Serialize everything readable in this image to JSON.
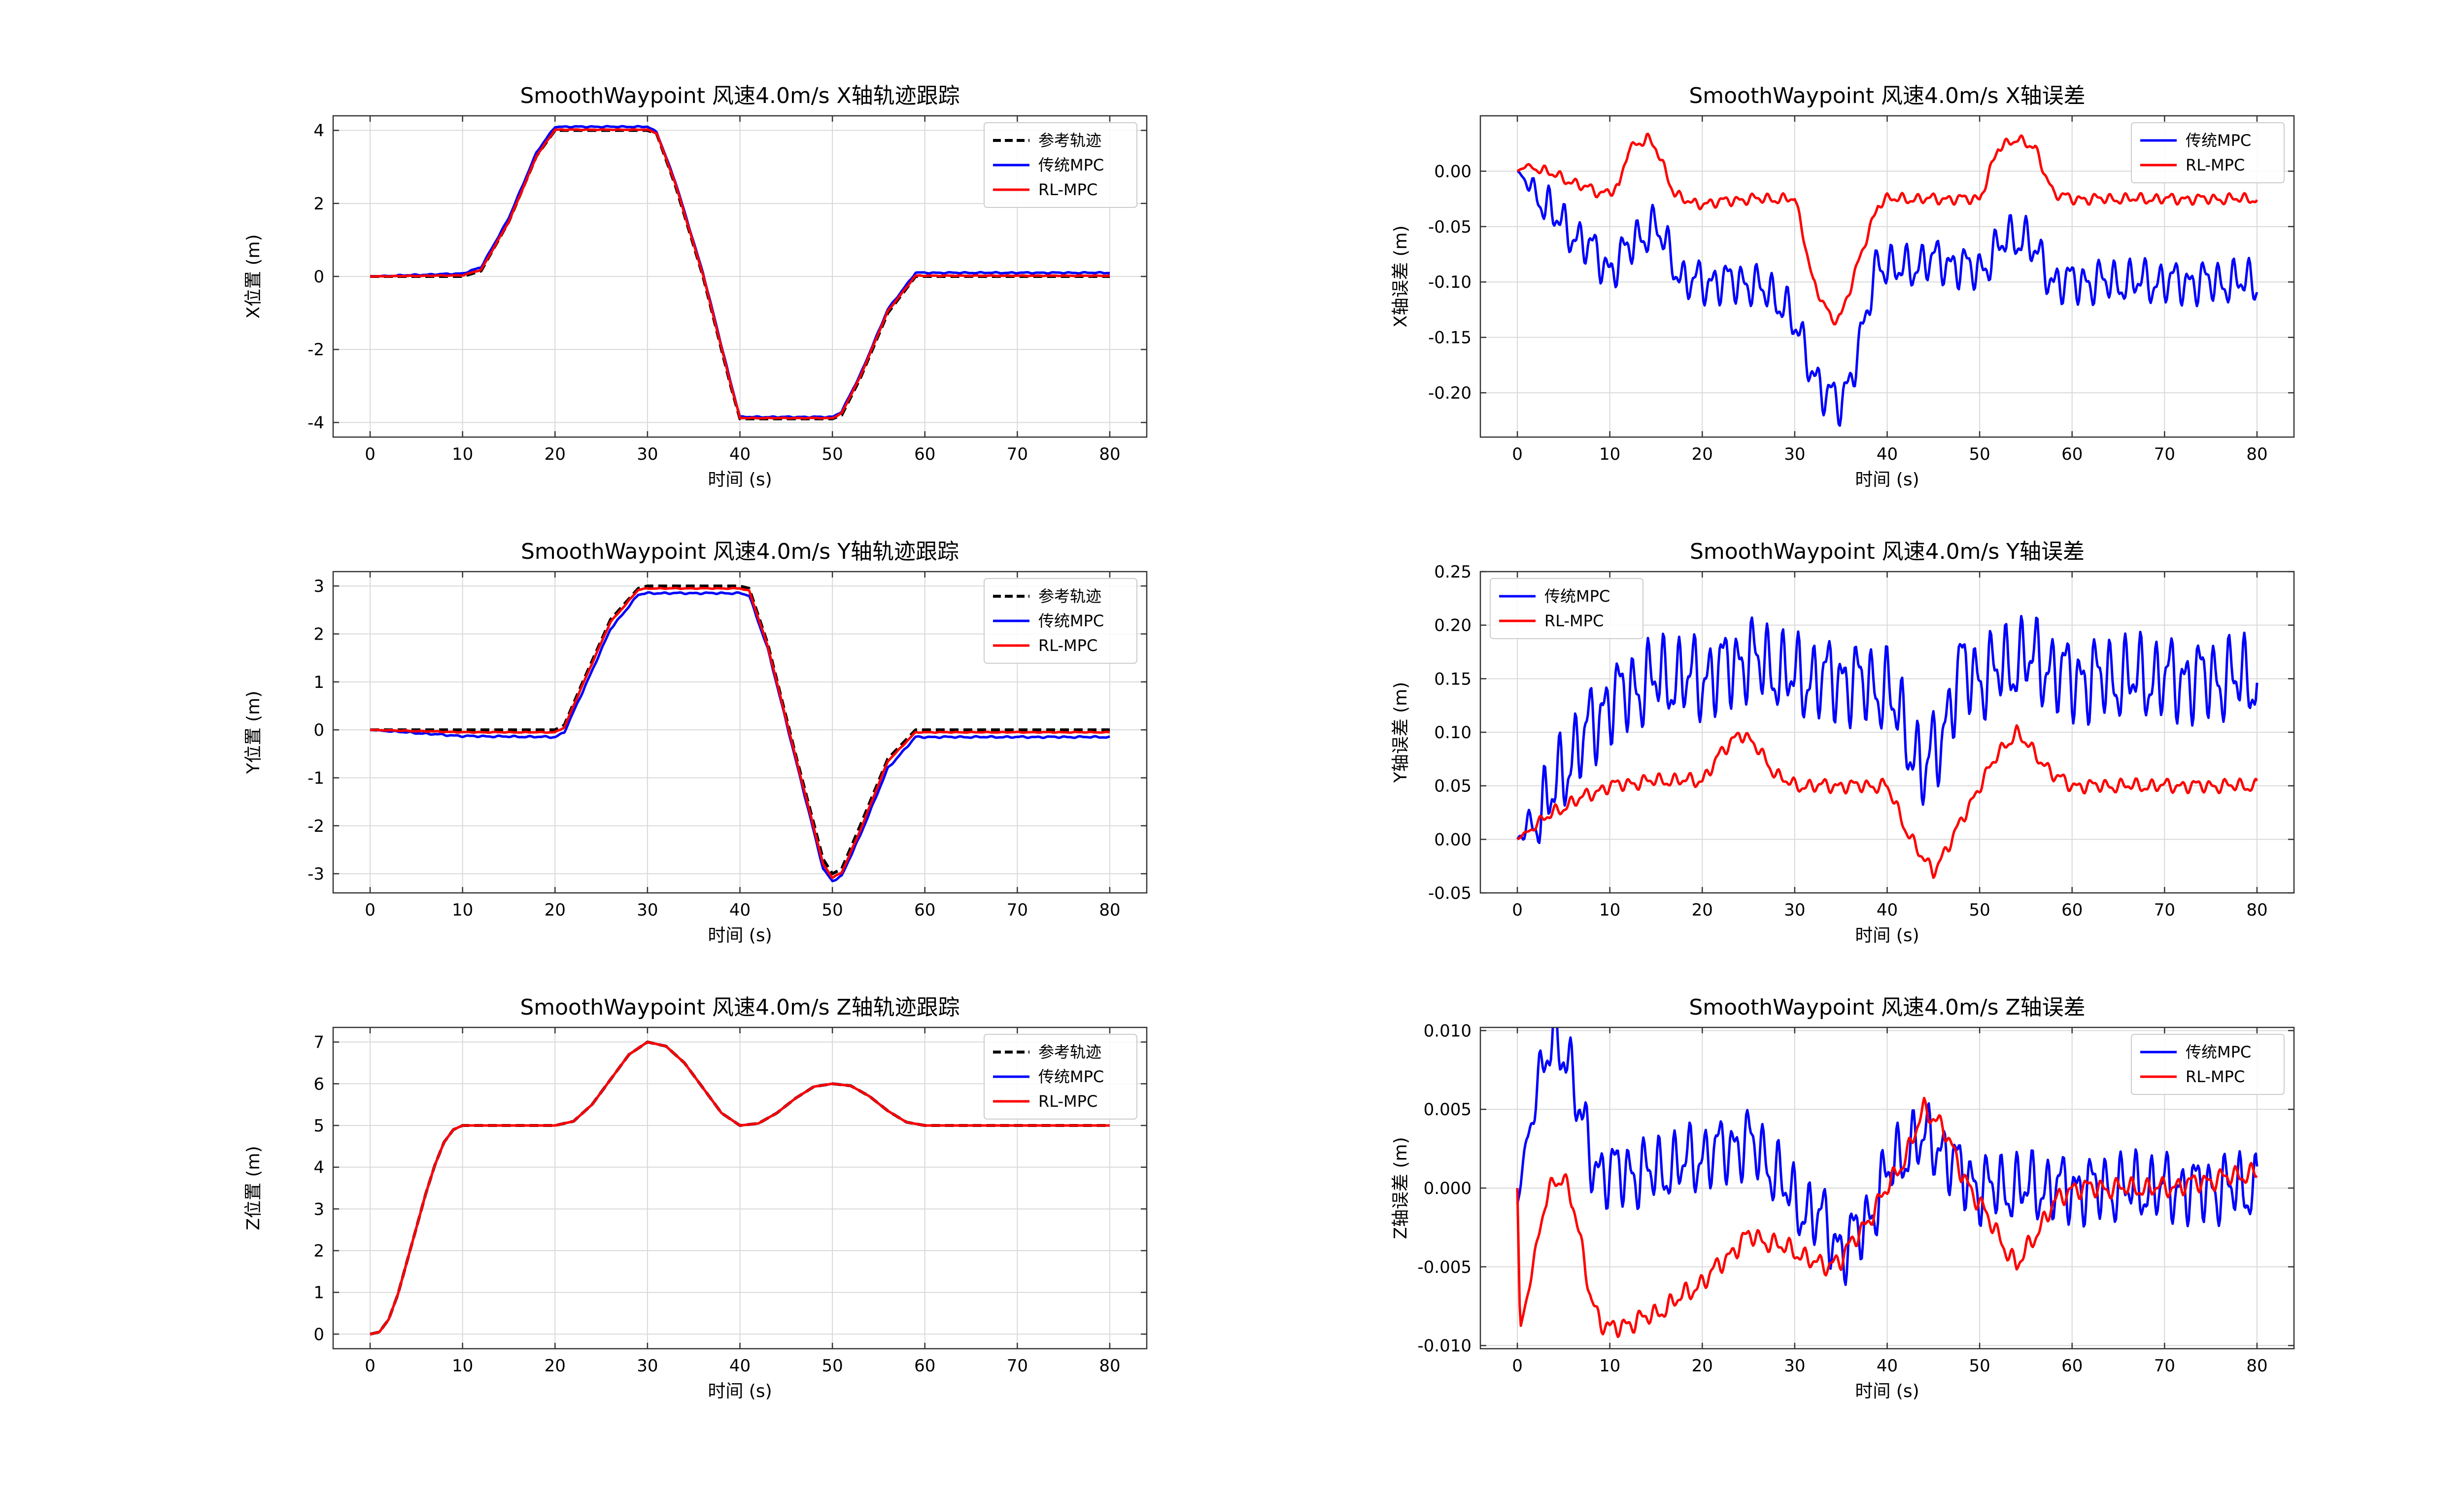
{
  "figure": {
    "colors": {
      "reference": "#000000",
      "traditional": "#0000ff",
      "rl": "#ff0000",
      "grid": "#d9d9d9",
      "axis": "#333333"
    }
  },
  "chart_data": [
    {
      "type": "line",
      "title": "SmoothWaypoint 风速4.0m/s X轴轨迹跟踪",
      "xlabel": "时间 (s)",
      "ylabel": "X位置 (m)",
      "xlim": [
        -4,
        84
      ],
      "ylim": [
        -4.4,
        4.4
      ],
      "xticks": [
        0,
        10,
        20,
        30,
        40,
        50,
        60,
        70,
        80
      ],
      "yticks": [
        -4,
        -2,
        0,
        2,
        4
      ],
      "grid": true,
      "legend": "top-right",
      "series": [
        {
          "name": "参考轨迹",
          "style": "dashed",
          "color": "#000000",
          "x": [
            0,
            10,
            12,
            15,
            18,
            20,
            30,
            31,
            33,
            36,
            39,
            40,
            50,
            51,
            53,
            56,
            59,
            60,
            80
          ],
          "y": [
            0,
            0,
            0.15,
            1.5,
            3.3,
            4.0,
            4.0,
            3.9,
            2.5,
            0,
            -3.0,
            -3.9,
            -3.9,
            -3.8,
            -2.8,
            -1.0,
            0,
            0,
            0
          ]
        },
        {
          "name": "传统MPC",
          "style": "solid",
          "color": "#0000ff",
          "x": [
            0,
            10,
            12,
            15,
            18,
            20,
            30,
            31,
            33,
            36,
            39,
            40,
            50,
            51,
            53,
            56,
            59,
            60,
            80
          ],
          "y": [
            0,
            0.08,
            0.25,
            1.6,
            3.4,
            4.1,
            4.1,
            3.95,
            2.6,
            0.1,
            -2.9,
            -3.85,
            -3.85,
            -3.7,
            -2.7,
            -0.9,
            0.1,
            0.1,
            0.1
          ]
        },
        {
          "name": "RL-MPC",
          "style": "solid",
          "color": "#ff0000",
          "x": [
            0,
            10,
            12,
            15,
            18,
            20,
            30,
            31,
            33,
            36,
            39,
            40,
            50,
            51,
            53,
            56,
            59,
            60,
            80
          ],
          "y": [
            0,
            0.03,
            0.18,
            1.5,
            3.3,
            4.02,
            4.02,
            3.92,
            2.55,
            0.05,
            -2.95,
            -3.88,
            -3.88,
            -3.75,
            -2.75,
            -0.95,
            0.02,
            0.02,
            0.02
          ]
        }
      ]
    },
    {
      "type": "line",
      "title": "SmoothWaypoint 风速4.0m/s X轴误差",
      "xlabel": "时间 (s)",
      "ylabel": "X轴误差 (m)",
      "xlim": [
        -4,
        84
      ],
      "ylim": [
        -0.24,
        0.05
      ],
      "xticks": [
        0,
        10,
        20,
        30,
        40,
        50,
        60,
        70,
        80
      ],
      "yticks": [
        -0.2,
        -0.15,
        -0.1,
        -0.05,
        0.0
      ],
      "yticklabels": [
        "-0.20",
        "-0.15",
        "-0.10",
        "-0.05",
        "0.00"
      ],
      "grid": true,
      "legend": "top-right",
      "series": [
        {
          "name": "传统MPC",
          "style": "solid",
          "color": "#0000ff",
          "x": [
            0,
            2,
            5,
            8,
            10,
            13,
            15,
            18,
            20,
            25,
            29,
            31,
            33,
            35,
            37,
            39,
            41,
            45,
            50,
            53,
            55,
            58,
            60,
            70,
            80
          ],
          "y": [
            0,
            -0.02,
            -0.05,
            -0.07,
            -0.09,
            -0.06,
            -0.05,
            -0.1,
            -0.1,
            -0.1,
            -0.12,
            -0.16,
            -0.2,
            -0.21,
            -0.16,
            -0.08,
            -0.09,
            -0.08,
            -0.09,
            -0.06,
            -0.06,
            -0.1,
            -0.1,
            -0.1,
            -0.1
          ]
        },
        {
          "name": "RL-MPC",
          "style": "solid",
          "color": "#ff0000",
          "x": [
            0,
            1,
            3,
            6,
            9,
            11,
            12,
            14,
            15,
            17,
            19,
            25,
            30,
            31,
            32,
            34,
            35,
            37,
            39,
            40,
            45,
            50,
            52,
            54,
            56,
            58,
            60,
            70,
            80
          ],
          "y": [
            0,
            0.005,
            0.0,
            -0.01,
            -0.02,
            -0.015,
            0.02,
            0.03,
            0.02,
            -0.02,
            -0.03,
            -0.025,
            -0.025,
            -0.06,
            -0.1,
            -0.135,
            -0.13,
            -0.08,
            -0.03,
            -0.025,
            -0.025,
            -0.025,
            0.02,
            0.03,
            0.02,
            -0.02,
            -0.025,
            -0.025,
            -0.025
          ]
        }
      ]
    },
    {
      "type": "line",
      "title": "SmoothWaypoint 风速4.0m/s Y轴轨迹跟踪",
      "xlabel": "时间 (s)",
      "ylabel": "Y位置 (m)",
      "xlim": [
        -4,
        84
      ],
      "ylim": [
        -3.4,
        3.3
      ],
      "xticks": [
        0,
        10,
        20,
        30,
        40,
        50,
        60,
        70,
        80
      ],
      "yticks": [
        -3,
        -2,
        -1,
        0,
        1,
        2,
        3
      ],
      "grid": true,
      "legend": "top-right",
      "series": [
        {
          "name": "参考轨迹",
          "style": "dashed",
          "color": "#000000",
          "x": [
            0,
            20,
            21,
            23,
            26,
            29,
            30,
            40,
            41,
            43,
            46,
            49,
            50,
            51,
            53,
            56,
            59,
            60,
            80
          ],
          "y": [
            0,
            0,
            0.1,
            1.0,
            2.3,
            2.95,
            3.0,
            3.0,
            2.95,
            1.8,
            -0.5,
            -2.7,
            -3.0,
            -2.9,
            -2.0,
            -0.6,
            0,
            0,
            0
          ]
        },
        {
          "name": "传统MPC",
          "style": "solid",
          "color": "#0000ff",
          "x": [
            0,
            10,
            20,
            21,
            23,
            26,
            29,
            30,
            40,
            41,
            43,
            46,
            49,
            50,
            51,
            53,
            56,
            59,
            60,
            80
          ],
          "y": [
            0,
            -0.13,
            -0.15,
            -0.05,
            0.8,
            2.1,
            2.82,
            2.85,
            2.85,
            2.8,
            1.7,
            -0.6,
            -2.9,
            -3.15,
            -3.05,
            -2.2,
            -0.8,
            -0.15,
            -0.15,
            -0.15
          ]
        },
        {
          "name": "RL-MPC",
          "style": "solid",
          "color": "#ff0000",
          "x": [
            0,
            10,
            20,
            21,
            23,
            26,
            29,
            30,
            40,
            41,
            43,
            46,
            49,
            50,
            51,
            53,
            56,
            59,
            60,
            80
          ],
          "y": [
            0,
            -0.05,
            -0.05,
            0.05,
            0.95,
            2.25,
            2.92,
            2.95,
            2.95,
            2.9,
            1.75,
            -0.55,
            -2.8,
            -3.08,
            -2.98,
            -2.1,
            -0.65,
            -0.05,
            -0.05,
            -0.05
          ]
        }
      ]
    },
    {
      "type": "line",
      "title": "SmoothWaypoint 风速4.0m/s Y轴误差",
      "xlabel": "时间 (s)",
      "ylabel": "Y轴误差 (m)",
      "xlim": [
        -4,
        84
      ],
      "ylim": [
        -0.05,
        0.25
      ],
      "xticks": [
        0,
        10,
        20,
        30,
        40,
        50,
        60,
        70,
        80
      ],
      "yticks": [
        -0.05,
        0.0,
        0.05,
        0.1,
        0.15,
        0.2,
        0.25
      ],
      "yticklabels": [
        "-0.05",
        "0.00",
        "0.05",
        "0.10",
        "0.15",
        "0.20",
        "0.25"
      ],
      "grid": true,
      "legend": "top-left",
      "series": [
        {
          "name": "传统MPC",
          "style": "solid",
          "color": "#0000ff",
          "x": [
            0,
            3,
            6,
            10,
            15,
            20,
            25,
            30,
            35,
            40,
            42,
            44,
            46,
            48,
            50,
            55,
            60,
            70,
            80
          ],
          "y": [
            0,
            0.03,
            0.08,
            0.13,
            0.15,
            0.15,
            0.17,
            0.15,
            0.15,
            0.14,
            0.1,
            0.06,
            0.1,
            0.16,
            0.15,
            0.17,
            0.15,
            0.15,
            0.15
          ]
        },
        {
          "name": "RL-MPC",
          "style": "solid",
          "color": "#ff0000",
          "x": [
            0,
            3,
            6,
            10,
            15,
            20,
            22,
            24,
            26,
            28,
            30,
            35,
            40,
            42,
            44,
            45,
            47,
            50,
            52,
            54,
            56,
            58,
            60,
            70,
            80
          ],
          "y": [
            0,
            0.02,
            0.035,
            0.05,
            0.055,
            0.055,
            0.08,
            0.1,
            0.085,
            0.06,
            0.05,
            0.05,
            0.05,
            0.01,
            -0.02,
            -0.03,
            0.0,
            0.05,
            0.08,
            0.1,
            0.08,
            0.06,
            0.05,
            0.05,
            0.05
          ]
        }
      ]
    },
    {
      "type": "line",
      "title": "SmoothWaypoint 风速4.0m/s Z轴轨迹跟踪",
      "xlabel": "时间 (s)",
      "ylabel": "Z位置 (m)",
      "xlim": [
        -4,
        84
      ],
      "ylim": [
        -0.35,
        7.35
      ],
      "xticks": [
        0,
        10,
        20,
        30,
        40,
        50,
        60,
        70,
        80
      ],
      "yticks": [
        0,
        1,
        2,
        3,
        4,
        5,
        6,
        7
      ],
      "grid": true,
      "legend": "top-right",
      "series": [
        {
          "name": "参考轨迹",
          "style": "dashed",
          "color": "#000000",
          "x": [
            0,
            1,
            2,
            3,
            4,
            5,
            6,
            7,
            8,
            9,
            10,
            20,
            22,
            24,
            26,
            28,
            30,
            32,
            34,
            36,
            38,
            40,
            42,
            44,
            46,
            48,
            50,
            52,
            54,
            56,
            58,
            60,
            80
          ],
          "y": [
            0,
            0.05,
            0.35,
            0.95,
            1.75,
            2.55,
            3.35,
            4.05,
            4.6,
            4.9,
            5.0,
            5.0,
            5.1,
            5.5,
            6.1,
            6.7,
            7.0,
            6.9,
            6.5,
            5.9,
            5.3,
            5.0,
            5.05,
            5.3,
            5.65,
            5.93,
            6.0,
            5.95,
            5.7,
            5.35,
            5.08,
            5.0,
            5.0
          ]
        },
        {
          "name": "传统MPC",
          "style": "solid",
          "color": "#0000ff",
          "x": [
            0,
            1,
            2,
            3,
            4,
            5,
            6,
            7,
            8,
            9,
            10,
            20,
            22,
            24,
            26,
            28,
            30,
            32,
            34,
            36,
            38,
            40,
            42,
            44,
            46,
            48,
            50,
            52,
            54,
            56,
            58,
            60,
            80
          ],
          "y": [
            0,
            0.05,
            0.35,
            0.95,
            1.75,
            2.55,
            3.35,
            4.05,
            4.6,
            4.9,
            5.0,
            5.0,
            5.1,
            5.5,
            6.1,
            6.7,
            7.0,
            6.9,
            6.5,
            5.9,
            5.3,
            5.0,
            5.05,
            5.3,
            5.65,
            5.93,
            6.0,
            5.95,
            5.7,
            5.35,
            5.08,
            5.0,
            5.0
          ]
        },
        {
          "name": "RL-MPC",
          "style": "solid",
          "color": "#ff0000",
          "x": [
            0,
            1,
            2,
            3,
            4,
            5,
            6,
            7,
            8,
            9,
            10,
            20,
            22,
            24,
            26,
            28,
            30,
            32,
            34,
            36,
            38,
            40,
            42,
            44,
            46,
            48,
            50,
            52,
            54,
            56,
            58,
            60,
            80
          ],
          "y": [
            0,
            0.05,
            0.35,
            0.95,
            1.75,
            2.55,
            3.35,
            4.05,
            4.6,
            4.9,
            5.0,
            5.0,
            5.1,
            5.5,
            6.1,
            6.7,
            7.0,
            6.9,
            6.5,
            5.9,
            5.3,
            5.0,
            5.05,
            5.3,
            5.65,
            5.93,
            6.0,
            5.95,
            5.7,
            5.35,
            5.08,
            5.0,
            5.0
          ]
        }
      ]
    },
    {
      "type": "line",
      "title": "SmoothWaypoint 风速4.0m/s Z轴误差",
      "xlabel": "时间 (s)",
      "ylabel": "Z轴误差 (m)",
      "xlim": [
        -4,
        84
      ],
      "ylim": [
        -0.0102,
        0.0102
      ],
      "xticks": [
        0,
        10,
        20,
        30,
        40,
        50,
        60,
        70,
        80
      ],
      "yticks": [
        -0.01,
        -0.005,
        0.0,
        0.005,
        0.01
      ],
      "yticklabels": [
        "-0.010",
        "-0.005",
        "0.000",
        "0.005",
        "0.010"
      ],
      "grid": true,
      "legend": "top-right",
      "series": [
        {
          "name": "传统MPC",
          "style": "solid",
          "color": "#0000ff",
          "x": [
            0,
            0.3,
            1,
            2,
            3,
            4,
            5,
            6,
            7,
            8,
            9,
            10,
            15,
            20,
            25,
            28,
            30,
            33,
            35,
            38,
            40,
            43,
            45,
            48,
            50,
            55,
            60,
            70,
            80
          ],
          "y": [
            -0.001,
            0.0,
            0.003,
            0.006,
            0.008,
            0.0095,
            0.009,
            0.007,
            0.004,
            0.002,
            0.001,
            0.001,
            0.001,
            0.002,
            0.003,
            0.001,
            -0.001,
            -0.002,
            -0.004,
            -0.002,
            0.001,
            0.003,
            0.003,
            0.001,
            0.0,
            0.0,
            0.0,
            0.0,
            0.0
          ]
        },
        {
          "name": "RL-MPC",
          "style": "solid",
          "color": "#ff0000",
          "x": [
            0,
            0.3,
            1,
            2,
            3,
            4,
            5,
            6,
            7,
            8,
            9,
            10,
            15,
            20,
            25,
            30,
            33,
            35,
            38,
            40,
            42,
            44,
            46,
            48,
            50,
            52,
            54,
            56,
            58,
            60,
            70,
            80
          ],
          "y": [
            0.0,
            -0.009,
            -0.007,
            -0.004,
            -0.001,
            0.0005,
            0.0007,
            -0.001,
            -0.004,
            -0.007,
            -0.0085,
            -0.009,
            -0.008,
            -0.006,
            -0.003,
            -0.004,
            -0.005,
            -0.0045,
            -0.002,
            0.0,
            0.002,
            0.005,
            0.004,
            0.001,
            -0.001,
            -0.003,
            -0.005,
            -0.003,
            -0.001,
            0.0,
            0.0,
            0.001
          ]
        }
      ]
    }
  ]
}
